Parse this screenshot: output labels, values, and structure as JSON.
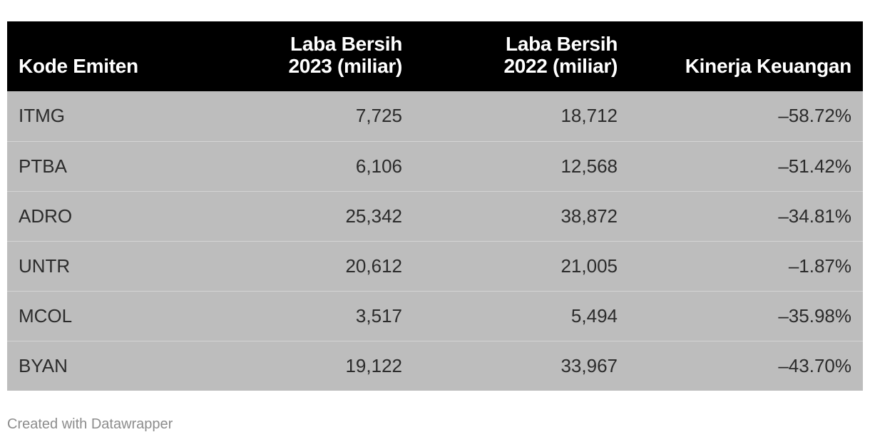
{
  "chart_data": {
    "type": "table",
    "columns": [
      "Kode Emiten",
      "Laba Bersih\n2023 (miliar)",
      "Laba Bersih\n2022 (miliar)",
      "Kinerja Keuangan"
    ],
    "rows": [
      [
        "ITMG",
        "7,725",
        "18,712",
        "–58.72%"
      ],
      [
        "PTBA",
        "6,106",
        "12,568",
        "–51.42%"
      ],
      [
        "ADRO",
        "25,342",
        "38,872",
        "–34.81%"
      ],
      [
        "UNTR",
        "20,612",
        "21,005",
        "–1.87%"
      ],
      [
        "MCOL",
        "3,517",
        "5,494",
        "–35.98%"
      ],
      [
        "BYAN",
        "19,122",
        "33,967",
        "–43.70%"
      ]
    ],
    "colors": {
      "header_background": "#000000",
      "row_background": "#bdbdbd"
    }
  },
  "footer": {
    "credit": "Created with Datawrapper"
  }
}
